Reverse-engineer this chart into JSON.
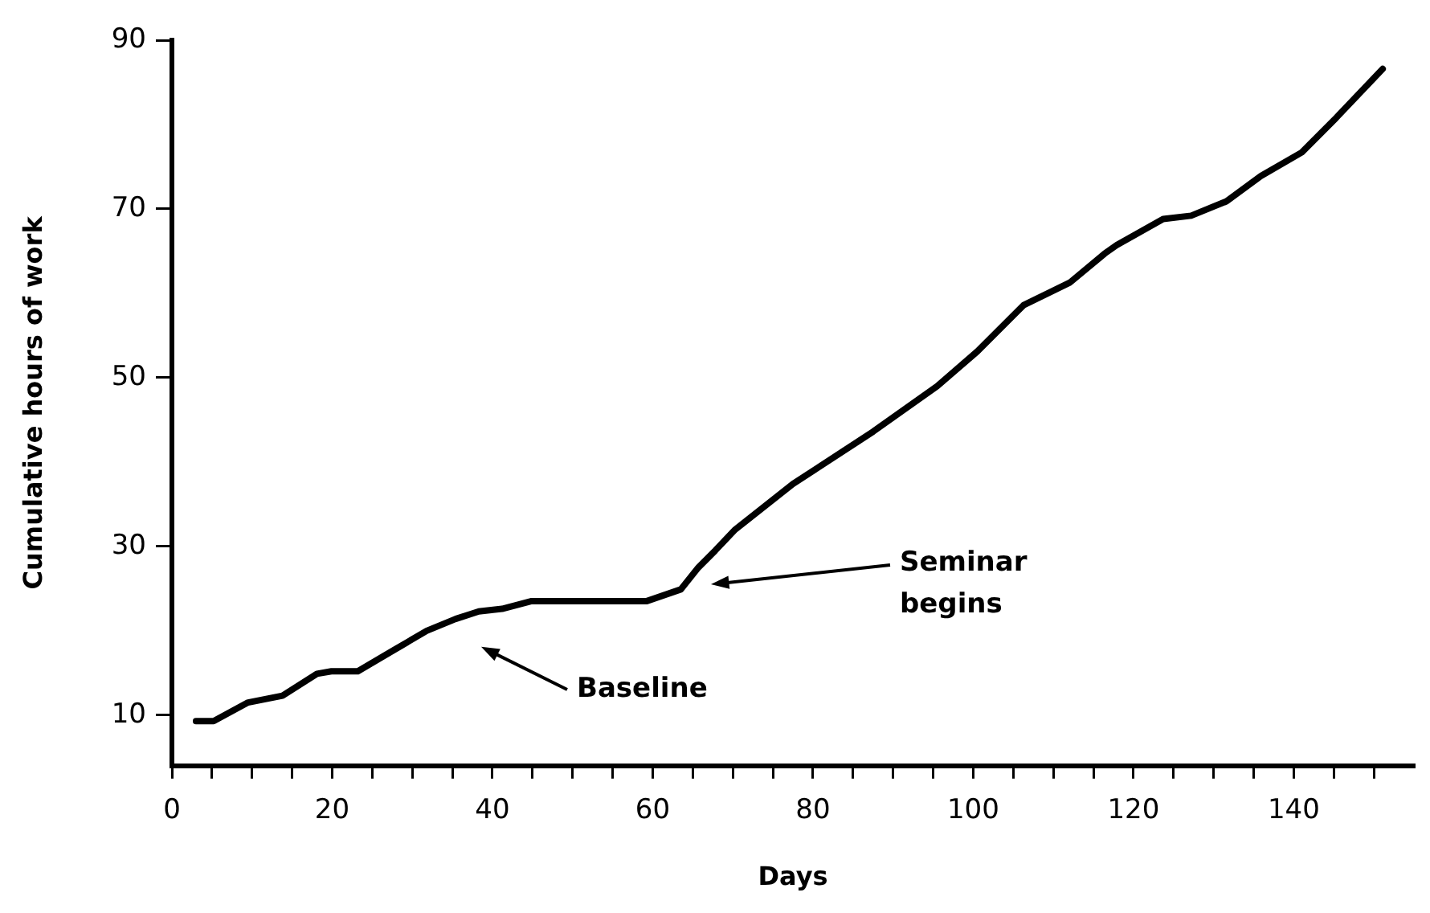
{
  "chart_data": {
    "type": "line",
    "xlabel": "Days",
    "ylabel": "Cumulative hours of work",
    "x": [
      3,
      5.2,
      9.5,
      13.8,
      18.1,
      19.9,
      23.2,
      27.5,
      31.8,
      35.4,
      38.3,
      41.2,
      44.8,
      59.2,
      63.5,
      65.7,
      67.8,
      70.3,
      77.5,
      87.5,
      95.5,
      100.5,
      106.3,
      112.1,
      116.4,
      117.9,
      123.7,
      127.2,
      131.6,
      135.9,
      141,
      145.3,
      151.1
    ],
    "series": [
      {
        "color": "#000000",
        "values": [
          9.3,
          9.3,
          11.5,
          12.3,
          14.9,
          15.2,
          15.2,
          17.6,
          20,
          21.4,
          22.3,
          22.6,
          23.5,
          23.5,
          24.9,
          27.5,
          29.5,
          32,
          37.4,
          43.6,
          49,
          53.1,
          58.6,
          61.3,
          64.7,
          65.7,
          68.8,
          69.2,
          70.9,
          73.9,
          76.7,
          80.8,
          86.6
        ]
      }
    ],
    "xlim": [
      0,
      155
    ],
    "xticks": [
      0,
      {
        "value": 5,
        "label": null
      },
      {
        "value": 10,
        "label": null
      },
      {
        "value": 15,
        "label": null
      },
      20,
      {
        "value": 25,
        "label": null
      },
      {
        "value": 30,
        "label": null
      },
      {
        "value": 35,
        "label": null
      },
      40,
      {
        "value": 45,
        "label": null
      },
      {
        "value": 50,
        "label": null
      },
      {
        "value": 55,
        "label": null
      },
      60,
      {
        "value": 65,
        "label": null
      },
      {
        "value": 70,
        "label": null
      },
      {
        "value": 75,
        "label": null
      },
      80,
      {
        "value": 85,
        "label": null
      },
      {
        "value": 90,
        "label": null
      },
      {
        "value": 95,
        "label": null
      },
      100,
      {
        "value": 105,
        "label": null
      },
      {
        "value": 110,
        "label": null
      },
      {
        "value": 115,
        "label": null
      },
      120,
      {
        "value": 125,
        "label": null
      },
      {
        "value": 130,
        "label": null
      },
      {
        "value": 135,
        "label": null
      },
      140,
      {
        "value": 145,
        "label": null
      },
      {
        "value": 150,
        "label": null
      }
    ],
    "ylim": [
      4,
      90
    ],
    "yticks": [
      10,
      30,
      50,
      70,
      90
    ],
    "annotations": [
      "Baseline",
      "Seminar begins"
    ],
    "grid": false,
    "legend": false,
    "marker": "none",
    "line_style": "solid"
  }
}
